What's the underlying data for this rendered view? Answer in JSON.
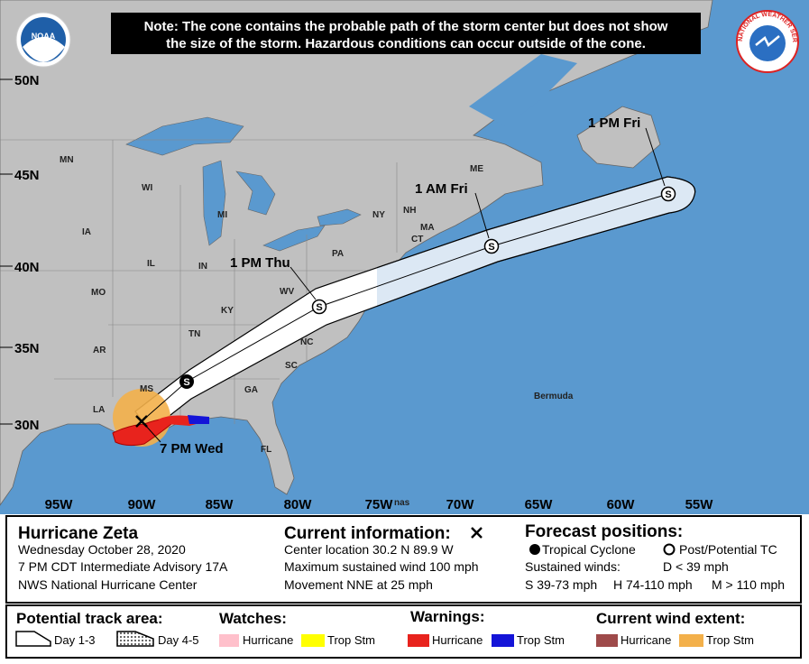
{
  "note": [
    "Note: The cone contains the probable path of the storm center but does not show",
    "the size of the storm. Hazardous conditions can occur outside of the cone."
  ],
  "logos": {
    "noaa": "NOAA",
    "nws": "NATIONAL WEATHER SERVICE"
  },
  "lat_labels": [
    "50N",
    "45N",
    "40N",
    "35N",
    "30N"
  ],
  "lon_labels": [
    "95W",
    "90W",
    "85W",
    "80W",
    "75W",
    "70W",
    "65W",
    "60W",
    "55W"
  ],
  "places": [
    "MN",
    "WI",
    "MI",
    "IA",
    "IL",
    "IN",
    "MO",
    "KY",
    "WV",
    "TN",
    "NC",
    "AR",
    "SC",
    "MS",
    "GA",
    "LA",
    "FL",
    "ME",
    "NY",
    "NH",
    "MA",
    "CT",
    "PA",
    "Bermuda",
    "nas"
  ],
  "track": [
    {
      "symbol": "S"
    },
    {
      "label": "1 PM Thu",
      "symbol": "S"
    },
    {
      "label": "1 AM Fri",
      "symbol": "S"
    },
    {
      "label": "1 PM Fri",
      "symbol": "S"
    }
  ],
  "current_label": "7 PM Wed",
  "info": {
    "name": "Hurricane Zeta",
    "lines": [
      "Wednesday October 28, 2020",
      "7 PM CDT Intermediate Advisory 17A",
      "NWS National Hurricane Center"
    ]
  },
  "current": {
    "title": "Current information:",
    "lines": [
      "Center location 30.2 N 89.9 W",
      "Maximum sustained wind 100 mph",
      "Movement NNE at 25 mph"
    ]
  },
  "forecast": {
    "title": "Forecast positions:",
    "tropical": "Tropical Cyclone",
    "post": "Post/Potential TC",
    "winds": "Sustained winds:",
    "d": "D < 39 mph",
    "s": "S 39-73 mph",
    "h": "H 74-110 mph",
    "m": "M > 110 mph"
  },
  "legend": {
    "track": "Potential track area:",
    "day13": "Day 1-3",
    "day45": "Day 4-5",
    "watches": "Watches:",
    "watch_hu": "Hurricane",
    "watch_ts": "Trop Stm",
    "warnings": "Warnings:",
    "warn_hu": "Hurricane",
    "warn_ts": "Trop Stm",
    "wind": "Current wind extent:",
    "wind_hu": "Hurricane",
    "wind_ts": "Trop Stm"
  }
}
